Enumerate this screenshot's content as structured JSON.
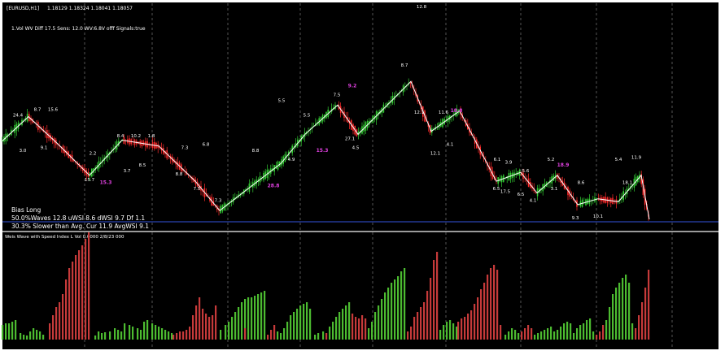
{
  "window": {
    "symbol_title": "[EURUSD,H1]",
    "ohlc": "1.18129 1.18324 1.18041 1.18057",
    "indicator_params": "1.Vol  WV Diff 17.5 Sens: 12.0 WV:6.8V offf Signals:true"
  },
  "info": {
    "bias": "Bias Long",
    "line1": "50.0%Waves 12.8 uWSI 8.6 dWSI 9.7 Df 1.1",
    "line2": "30.3% Slower than Avg. Cur 11.9 AvgWSI 9.1"
  },
  "subwindow": {
    "title": "Weis Wave with Speed Index  L  Vol   0.0000 2/8/23 000"
  },
  "colors": {
    "background": "#000000",
    "bull_candle": "#33cc33",
    "bear_candle": "#ff2b2b",
    "zigzag": "#ffffff",
    "highlight_label": "#e040e0",
    "separator": "#9a9a9a",
    "grid": "#8a8a8a",
    "hline": "#3355dd",
    "volume_up": "#4cbb30",
    "volume_down": "#c63a3a"
  },
  "chart_data": {
    "type": "line",
    "series": [
      {
        "x": [
          0,
          35,
          70,
          110,
          150,
          195,
          240,
          270,
          345,
          375,
          415,
          440,
          505,
          530,
          565,
          610,
          640,
          660,
          685,
          710,
          735,
          760,
          788,
          798
        ],
        "values": [
          1.1895,
          1.194,
          1.1895,
          1.184,
          1.19,
          1.189,
          1.183,
          1.178,
          1.186,
          1.191,
          1.196,
          1.191,
          1.2,
          1.1915,
          1.195,
          1.183,
          1.1845,
          1.181,
          1.184,
          1.179,
          1.18,
          1.1795,
          1.184,
          1.1765
        ]
      }
    ],
    "wave_labels": [
      {
        "text": "24.4",
        "x": 22,
        "y": 1.194
      },
      {
        "text": "3.0",
        "x": 28,
        "y": 1.188
      },
      {
        "text": "8.7",
        "x": 46,
        "y": 1.195
      },
      {
        "text": "9.1",
        "x": 54,
        "y": 1.1885
      },
      {
        "text": "15.6",
        "x": 65,
        "y": 1.195
      },
      {
        "text": "2.2",
        "x": 114,
        "y": 1.1875
      },
      {
        "text": "15.7",
        "x": 110,
        "y": 1.183
      },
      {
        "text": "15.3",
        "x": 130,
        "y": 1.1825,
        "highlight": true
      },
      {
        "text": "8.4",
        "x": 148,
        "y": 1.1905
      },
      {
        "text": "3.7",
        "x": 156,
        "y": 1.1845
      },
      {
        "text": "10.2",
        "x": 167,
        "y": 1.1905
      },
      {
        "text": "8.5",
        "x": 175,
        "y": 1.1855
      },
      {
        "text": "1.8",
        "x": 186,
        "y": 1.1905
      },
      {
        "text": "8.8",
        "x": 220,
        "y": 1.184
      },
      {
        "text": "7.3",
        "x": 227,
        "y": 1.1885
      },
      {
        "text": "7.5",
        "x": 242,
        "y": 1.1815
      },
      {
        "text": "6.8",
        "x": 253,
        "y": 1.189
      },
      {
        "text": "7.3",
        "x": 268,
        "y": 1.1795
      },
      {
        "text": "8.8",
        "x": 314,
        "y": 1.188
      },
      {
        "text": "28.8",
        "x": 336,
        "y": 1.182,
        "highlight": true
      },
      {
        "text": "4.9",
        "x": 358,
        "y": 1.1865
      },
      {
        "text": "5.5",
        "x": 346,
        "y": 1.1965
      },
      {
        "text": "5.5",
        "x": 377,
        "y": 1.194
      },
      {
        "text": "15.3",
        "x": 396,
        "y": 1.188,
        "highlight": true
      },
      {
        "text": "7.5",
        "x": 414,
        "y": 1.1975
      },
      {
        "text": "27.1",
        "x": 430,
        "y": 1.19
      },
      {
        "text": "9.2",
        "x": 433,
        "y": 1.199,
        "highlight": true
      },
      {
        "text": "4.5",
        "x": 437,
        "y": 1.1885
      },
      {
        "text": "8.7",
        "x": 497,
        "y": 1.2025
      },
      {
        "text": "12.8",
        "x": 518,
        "y": 1.2125
      },
      {
        "text": "12.1",
        "x": 515,
        "y": 1.1945
      },
      {
        "text": "12.1",
        "x": 535,
        "y": 1.1875
      },
      {
        "text": "11.6",
        "x": 545,
        "y": 1.1945
      },
      {
        "text": "4.1",
        "x": 553,
        "y": 1.189
      },
      {
        "text": "18.8",
        "x": 561,
        "y": 1.1948,
        "highlight": true
      },
      {
        "text": "6.1",
        "x": 611,
        "y": 1.1865
      },
      {
        "text": "3.9",
        "x": 625,
        "y": 1.186
      },
      {
        "text": "6.5",
        "x": 610,
        "y": 1.1815
      },
      {
        "text": "17.5",
        "x": 621,
        "y": 1.181
      },
      {
        "text": "6.5",
        "x": 640,
        "y": 1.1805
      },
      {
        "text": "5.6",
        "x": 646,
        "y": 1.1845
      },
      {
        "text": "4.1",
        "x": 655,
        "y": 1.1795
      },
      {
        "text": "5.2",
        "x": 677,
        "y": 1.1865
      },
      {
        "text": "3.1",
        "x": 681,
        "y": 1.1815
      },
      {
        "text": "18.9",
        "x": 692,
        "y": 1.1855,
        "highlight": true
      },
      {
        "text": "8.6",
        "x": 714,
        "y": 1.1825
      },
      {
        "text": "9.3",
        "x": 707,
        "y": 1.1765
      },
      {
        "text": "10.1",
        "x": 735,
        "y": 1.1768
      },
      {
        "text": "18.1",
        "x": 771,
        "y": 1.1825
      },
      {
        "text": "5.4",
        "x": 760,
        "y": 1.1865
      },
      {
        "text": "11.9",
        "x": 782,
        "y": 1.1868
      }
    ],
    "volume": {
      "up": [
        [
          2,
          18
        ],
        [
          6,
          20
        ],
        [
          10,
          20
        ],
        [
          14,
          22
        ],
        [
          18,
          24
        ],
        [
          24,
          8
        ],
        [
          28,
          6
        ],
        [
          32,
          5
        ],
        [
          36,
          10
        ],
        [
          40,
          14
        ],
        [
          44,
          12
        ],
        [
          48,
          10
        ],
        [
          52,
          6
        ],
        [
          116,
          5
        ],
        [
          120,
          10
        ],
        [
          124,
          8
        ],
        [
          128,
          9
        ],
        [
          134,
          10
        ],
        [
          140,
          14
        ],
        [
          144,
          12
        ],
        [
          148,
          10
        ],
        [
          152,
          20
        ],
        [
          158,
          18
        ],
        [
          162,
          16
        ],
        [
          168,
          14
        ],
        [
          172,
          12
        ],
        [
          176,
          22
        ],
        [
          180,
          24
        ],
        [
          186,
          20
        ],
        [
          190,
          18
        ],
        [
          194,
          16
        ],
        [
          198,
          14
        ],
        [
          202,
          12
        ],
        [
          206,
          10
        ],
        [
          210,
          8
        ],
        [
          270,
          12
        ],
        [
          276,
          18
        ],
        [
          280,
          22
        ],
        [
          284,
          28
        ],
        [
          288,
          34
        ],
        [
          292,
          40
        ],
        [
          296,
          46
        ],
        [
          300,
          50
        ],
        [
          304,
          52
        ],
        [
          308,
          52
        ],
        [
          312,
          54
        ],
        [
          316,
          56
        ],
        [
          320,
          58
        ],
        [
          324,
          60
        ],
        [
          340,
          10
        ],
        [
          344,
          8
        ],
        [
          348,
          14
        ],
        [
          352,
          22
        ],
        [
          356,
          30
        ],
        [
          360,
          34
        ],
        [
          364,
          38
        ],
        [
          368,
          42
        ],
        [
          372,
          44
        ],
        [
          376,
          46
        ],
        [
          380,
          38
        ],
        [
          386,
          6
        ],
        [
          390,
          8
        ],
        [
          396,
          10
        ],
        [
          404,
          16
        ],
        [
          408,
          22
        ],
        [
          412,
          28
        ],
        [
          416,
          34
        ],
        [
          420,
          38
        ],
        [
          424,
          42
        ],
        [
          428,
          46
        ],
        [
          452,
          14
        ],
        [
          456,
          22
        ],
        [
          460,
          34
        ],
        [
          464,
          42
        ],
        [
          468,
          50
        ],
        [
          472,
          58
        ],
        [
          476,
          64
        ],
        [
          480,
          70
        ],
        [
          484,
          74
        ],
        [
          488,
          78
        ],
        [
          492,
          84
        ],
        [
          496,
          88
        ],
        [
          540,
          12
        ],
        [
          544,
          18
        ],
        [
          548,
          22
        ],
        [
          552,
          24
        ],
        [
          556,
          20
        ],
        [
          560,
          16
        ],
        [
          620,
          6
        ],
        [
          624,
          10
        ],
        [
          628,
          14
        ],
        [
          632,
          12
        ],
        [
          636,
          8
        ],
        [
          656,
          6
        ],
        [
          660,
          8
        ],
        [
          664,
          10
        ],
        [
          668,
          12
        ],
        [
          672,
          14
        ],
        [
          676,
          16
        ],
        [
          680,
          10
        ],
        [
          684,
          12
        ],
        [
          688,
          16
        ],
        [
          692,
          20
        ],
        [
          696,
          22
        ],
        [
          700,
          20
        ],
        [
          704,
          8
        ],
        [
          708,
          14
        ],
        [
          712,
          18
        ],
        [
          716,
          20
        ],
        [
          720,
          24
        ],
        [
          724,
          26
        ],
        [
          728,
          10
        ],
        [
          744,
          24
        ],
        [
          748,
          40
        ],
        [
          752,
          56
        ],
        [
          756,
          64
        ],
        [
          760,
          70
        ],
        [
          764,
          76
        ],
        [
          768,
          80
        ],
        [
          772,
          70
        ],
        [
          776,
          20
        ]
      ],
      "down": [
        [
          60,
          20
        ],
        [
          64,
          30
        ],
        [
          68,
          40
        ],
        [
          72,
          46
        ],
        [
          76,
          56
        ],
        [
          80,
          74
        ],
        [
          84,
          88
        ],
        [
          88,
          96
        ],
        [
          92,
          104
        ],
        [
          96,
          110
        ],
        [
          100,
          116
        ],
        [
          104,
          124
        ],
        [
          108,
          132
        ],
        [
          212,
          6
        ],
        [
          216,
          8
        ],
        [
          220,
          10
        ],
        [
          224,
          10
        ],
        [
          228,
          12
        ],
        [
          232,
          16
        ],
        [
          236,
          30
        ],
        [
          240,
          42
        ],
        [
          244,
          52
        ],
        [
          248,
          38
        ],
        [
          252,
          32
        ],
        [
          256,
          28
        ],
        [
          260,
          30
        ],
        [
          264,
          42
        ],
        [
          300,
          14
        ],
        [
          328,
          6
        ],
        [
          332,
          12
        ],
        [
          336,
          18
        ],
        [
          400,
          8
        ],
        [
          432,
          32
        ],
        [
          436,
          28
        ],
        [
          440,
          26
        ],
        [
          444,
          30
        ],
        [
          448,
          26
        ],
        [
          500,
          10
        ],
        [
          504,
          16
        ],
        [
          508,
          28
        ],
        [
          512,
          34
        ],
        [
          516,
          40
        ],
        [
          520,
          46
        ],
        [
          524,
          60
        ],
        [
          528,
          76
        ],
        [
          532,
          98
        ],
        [
          536,
          108
        ],
        [
          562,
          22
        ],
        [
          566,
          26
        ],
        [
          570,
          28
        ],
        [
          574,
          32
        ],
        [
          578,
          36
        ],
        [
          582,
          44
        ],
        [
          586,
          52
        ],
        [
          590,
          62
        ],
        [
          594,
          70
        ],
        [
          598,
          80
        ],
        [
          602,
          88
        ],
        [
          606,
          92
        ],
        [
          610,
          86
        ],
        [
          614,
          18
        ],
        [
          640,
          10
        ],
        [
          644,
          14
        ],
        [
          648,
          18
        ],
        [
          652,
          14
        ],
        [
          732,
          6
        ],
        [
          736,
          10
        ],
        [
          740,
          18
        ],
        [
          780,
          14
        ],
        [
          784,
          30
        ],
        [
          788,
          46
        ],
        [
          792,
          64
        ],
        [
          796,
          86
        ]
      ]
    },
    "xlabel": "",
    "ylabel": ""
  }
}
